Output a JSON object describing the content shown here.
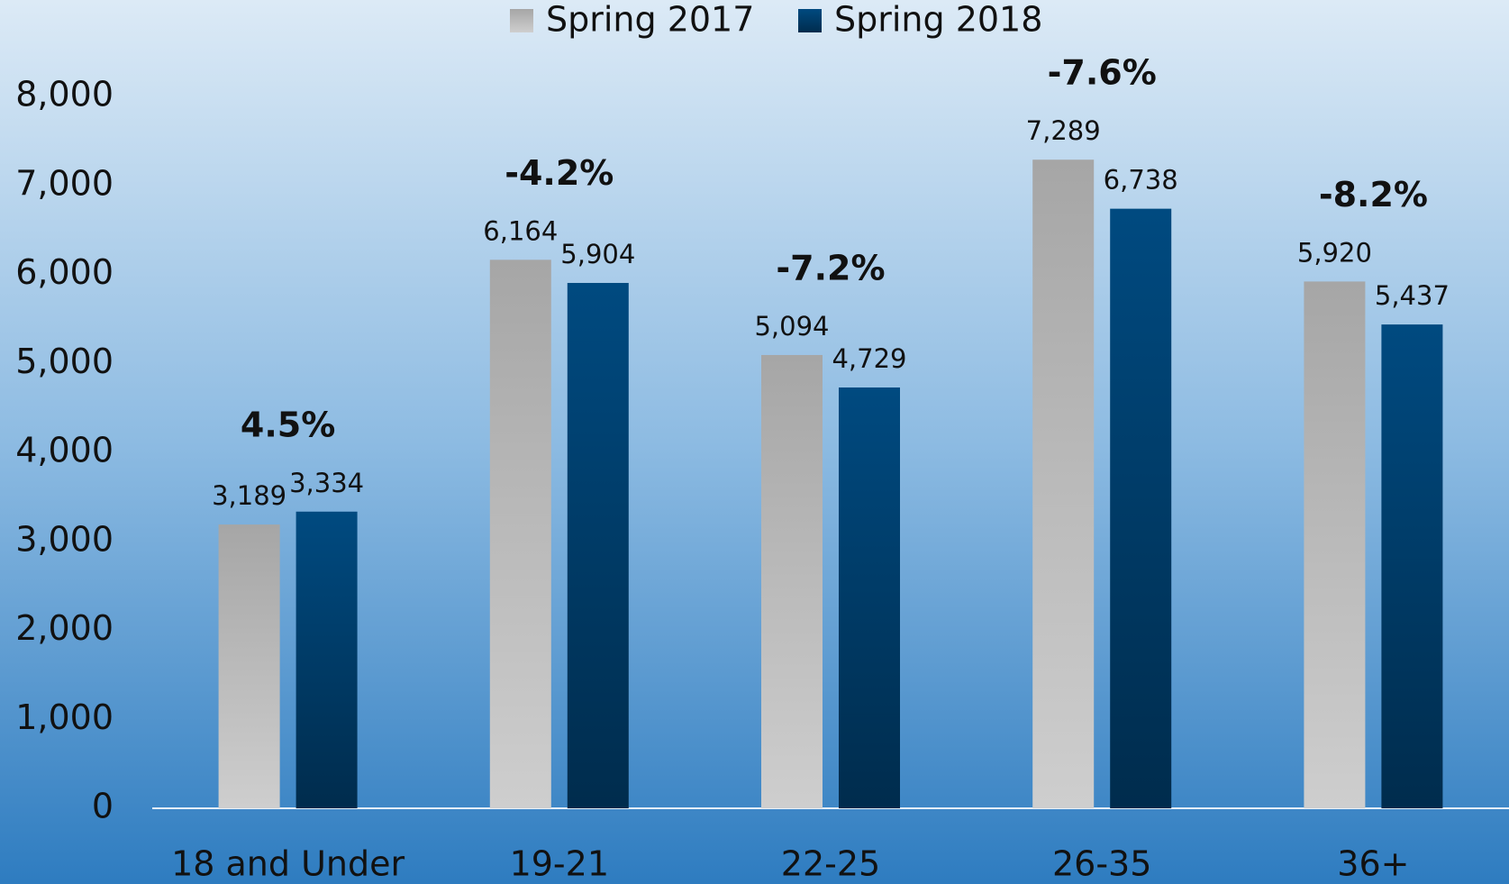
{
  "chart_data": {
    "type": "bar",
    "categories": [
      "18 and Under",
      "19-21",
      "22-25",
      "26-35",
      "36+"
    ],
    "series": [
      {
        "name": "Spring 2017",
        "color": "#a6a6a6",
        "values": [
          3189,
          6164,
          5094,
          7289,
          5920
        ],
        "value_labels": [
          "3,189",
          "6,164",
          "5,094",
          "7,289",
          "5,920"
        ]
      },
      {
        "name": "Spring 2018",
        "color": "#004a80",
        "values": [
          3334,
          5904,
          4729,
          6738,
          5437
        ],
        "value_labels": [
          "3,334",
          "5,904",
          "4,729",
          "6,738",
          "5,437"
        ]
      }
    ],
    "annotations": [
      "4.5%",
      "-4.2%",
      "-7.2%",
      "-7.6%",
      "-8.2%"
    ],
    "ylim": [
      0,
      8000
    ],
    "yticks": [
      0,
      {
        "value": 1000,
        "label": "1,000"
      },
      {
        "value": 2000,
        "label": "2,000"
      },
      {
        "value": 3000,
        "label": "3,000"
      },
      {
        "value": 4000,
        "label": "4,000"
      },
      {
        "value": 5000,
        "label": "5,000"
      },
      {
        "value": 6000,
        "label": "6,000"
      },
      {
        "value": 7000,
        "label": "7,000"
      },
      {
        "value": 8000,
        "label": "8,000"
      }
    ],
    "grid": false,
    "legend": "top"
  }
}
